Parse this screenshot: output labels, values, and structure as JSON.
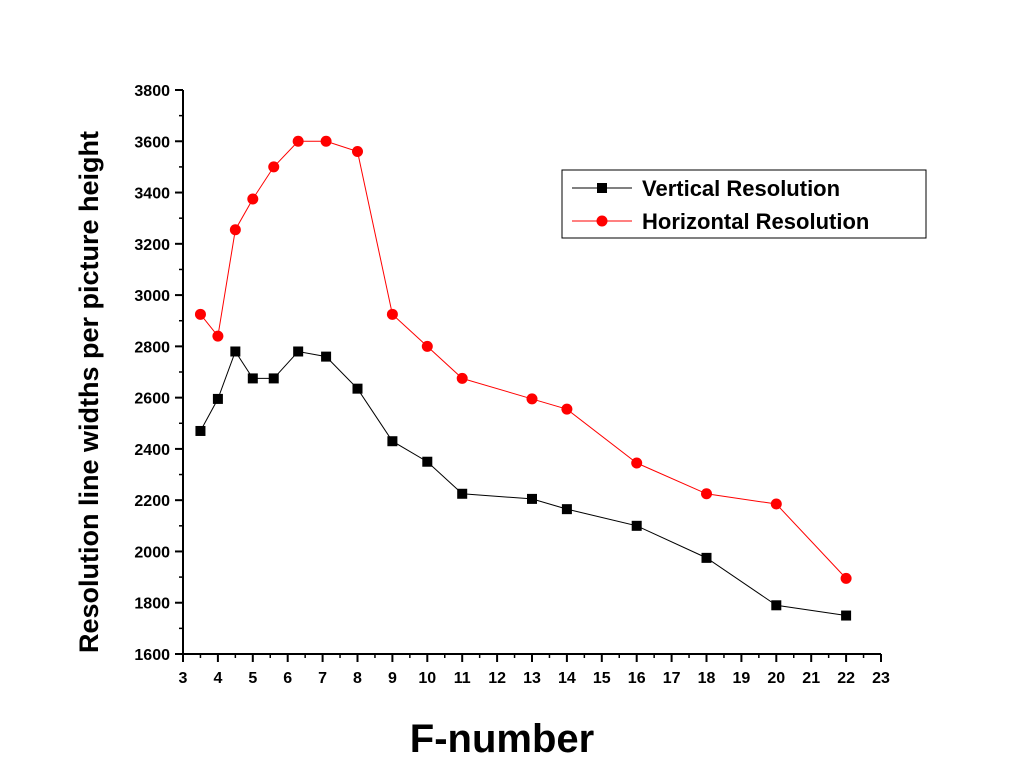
{
  "chart_data": {
    "type": "line",
    "title": "",
    "xlabel": "F-number",
    "ylabel": "Resolution line widths per picture height",
    "xlim": [
      3,
      23
    ],
    "ylim": [
      1600,
      3800
    ],
    "x_ticks": [
      3,
      4,
      5,
      6,
      7,
      8,
      9,
      10,
      11,
      12,
      13,
      14,
      15,
      16,
      17,
      18,
      19,
      20,
      21,
      22,
      23
    ],
    "y_ticks": [
      1600,
      1800,
      2000,
      2200,
      2400,
      2600,
      2800,
      3000,
      3200,
      3400,
      3600,
      3800
    ],
    "grid": false,
    "legend_position": "top-right",
    "series": [
      {
        "name": "Vertical Resolution",
        "color": "#000000",
        "marker": "square",
        "x": [
          3.5,
          4,
          4.5,
          5,
          5.6,
          6.3,
          7.1,
          8,
          9,
          10,
          11,
          13,
          14,
          16,
          18,
          20,
          22
        ],
        "y": [
          2470,
          2595,
          2780,
          2675,
          2675,
          2780,
          2760,
          2635,
          2430,
          2350,
          2225,
          2205,
          2165,
          2100,
          1975,
          1790,
          1750
        ]
      },
      {
        "name": "Horizontal Resolution",
        "color": "#ff0000",
        "marker": "circle",
        "x": [
          3.5,
          4,
          4.5,
          5,
          5.6,
          6.3,
          7.1,
          8,
          9,
          10,
          11,
          13,
          14,
          16,
          18,
          20,
          22
        ],
        "y": [
          2925,
          2840,
          3255,
          3375,
          3500,
          3600,
          3600,
          3560,
          2925,
          2800,
          2675,
          2595,
          2555,
          2345,
          2225,
          2185,
          1895
        ]
      }
    ]
  }
}
